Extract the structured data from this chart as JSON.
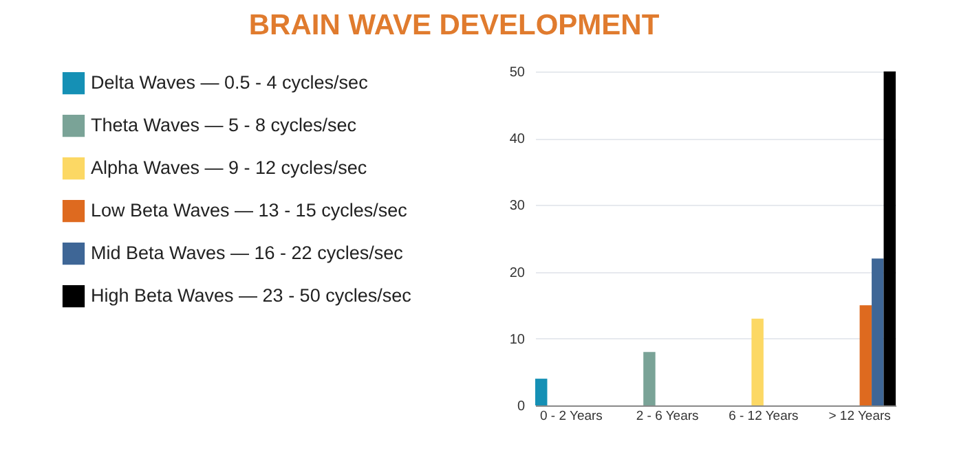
{
  "chart_data": {
    "type": "bar",
    "title": "BRAIN WAVE DEVELOPMENT",
    "categories": [
      "0 - 2 Years",
      "2 - 6 Years",
      "6 - 12 Years",
      "> 12 Years"
    ],
    "series": [
      {
        "name": "Delta Waves — 0.5 - 4 cycles/sec",
        "color": "#1590b5",
        "values": [
          4,
          null,
          null,
          null
        ]
      },
      {
        "name": "Theta Waves — 5 - 8 cycles/sec",
        "color": "#7aa397",
        "values": [
          null,
          8,
          null,
          null
        ]
      },
      {
        "name": "Alpha Waves — 9 - 12 cycles/sec",
        "color": "#fcd864",
        "values": [
          null,
          null,
          13,
          null
        ]
      },
      {
        "name": "Low Beta Waves — 13 - 15 cycles/sec",
        "color": "#de6a1f",
        "values": [
          null,
          null,
          null,
          15
        ]
      },
      {
        "name": "Mid Beta Waves — 16 - 22 cycles/sec",
        "color": "#3e6696",
        "values": [
          null,
          null,
          null,
          22
        ]
      },
      {
        "name": "High Beta Waves — 23 - 50 cycles/sec",
        "color": "#000000",
        "values": [
          null,
          null,
          null,
          50
        ]
      }
    ],
    "ylim": [
      0,
      50
    ],
    "yticks": [
      0,
      10,
      20,
      30,
      40,
      50
    ],
    "grid": "y",
    "legend": "left"
  }
}
